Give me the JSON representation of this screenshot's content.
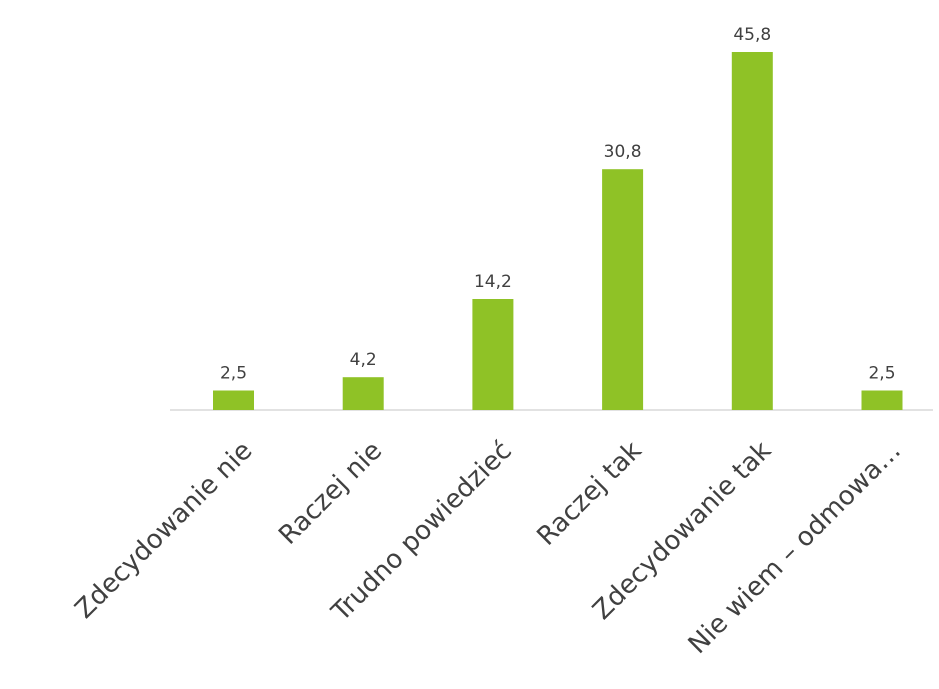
{
  "chart_data": {
    "type": "bar",
    "categories": [
      "Zdecydowanie nie",
      "Raczej nie",
      "Trudno powiedzieć",
      "Raczej tak",
      "Zdecydowanie tak",
      "Nie wiem – odmowa…"
    ],
    "values": [
      2.5,
      4.2,
      14.2,
      30.8,
      45.8,
      2.5
    ],
    "value_labels": [
      "2,5",
      "4,2",
      "14,2",
      "30,8",
      "45,8",
      "2,5"
    ],
    "ylim": [
      0,
      45.8
    ],
    "grid": false,
    "legend": "none",
    "colors": {
      "bar": "#8fc226",
      "axis": "#d9d9d9",
      "text": "#404040"
    }
  }
}
